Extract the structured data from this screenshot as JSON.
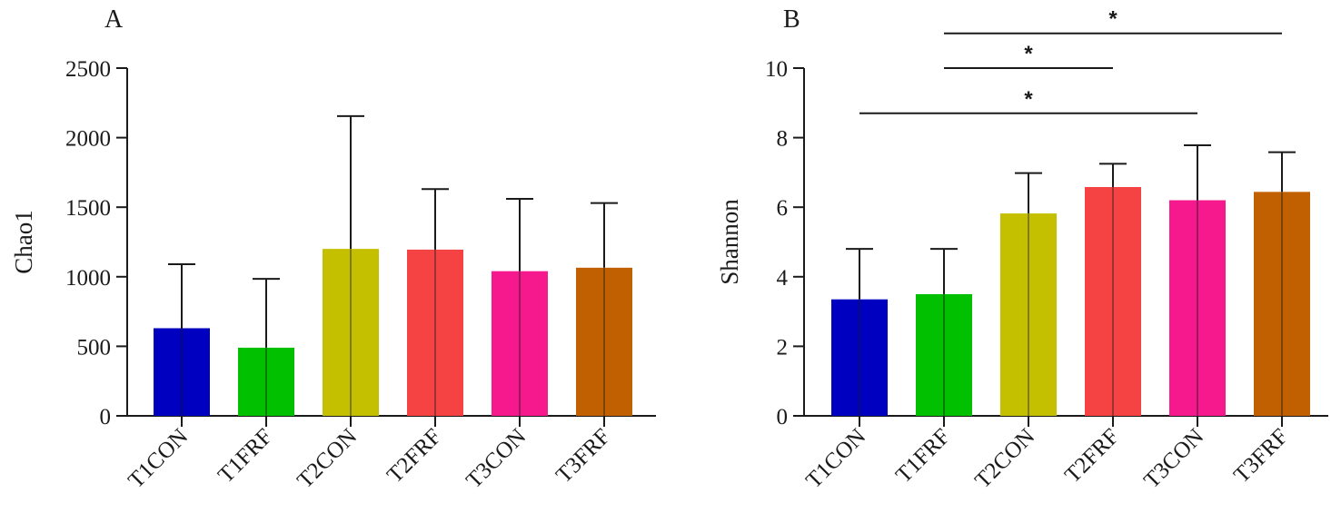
{
  "colors": {
    "axis": "#1a1a1a",
    "bars": [
      "#0000c0",
      "#00c000",
      "#c4c000",
      "#f54343",
      "#f5198d",
      "#c06000"
    ]
  },
  "chart_data": [
    {
      "panel": "A",
      "type": "bar",
      "categories": [
        "T1CON",
        "T1FRF",
        "T2CON",
        "T2FRF",
        "T3CON",
        "T3FRF"
      ],
      "values": [
        630,
        490,
        1200,
        1195,
        1040,
        1065
      ],
      "error_upper": [
        1090,
        985,
        2155,
        1630,
        1560,
        1530
      ],
      "ylabel": "Chao1",
      "ylim": [
        0,
        2500
      ],
      "yticks": [
        "0",
        "500",
        "1000",
        "1500",
        "2000",
        "2500"
      ],
      "ytick_values": [
        0,
        500,
        1000,
        1500,
        2000,
        2500
      ],
      "grid": false,
      "significance": []
    },
    {
      "panel": "B",
      "type": "bar",
      "categories": [
        "T1CON",
        "T1FRF",
        "T2CON",
        "T2FRF",
        "T3CON",
        "T3FRF"
      ],
      "values": [
        3.35,
        3.5,
        5.82,
        6.58,
        6.2,
        6.44
      ],
      "error_upper": [
        4.8,
        4.8,
        6.98,
        7.25,
        7.78,
        7.58
      ],
      "ylabel": "Shannon",
      "ylim": [
        0,
        10
      ],
      "yticks": [
        "0",
        "2",
        "4",
        "6",
        "8",
        "10"
      ],
      "ytick_values": [
        0,
        2,
        4,
        6,
        8,
        10
      ],
      "grid": false,
      "significance": [
        {
          "from": "T1FRF",
          "to": "T3FRF",
          "label": "*",
          "level": 11.0
        },
        {
          "from": "T1FRF",
          "to": "T2FRF",
          "label": "*",
          "level": 10.0
        },
        {
          "from": "T1CON",
          "to": "T3CON",
          "label": "*",
          "level": 8.7
        }
      ]
    }
  ]
}
